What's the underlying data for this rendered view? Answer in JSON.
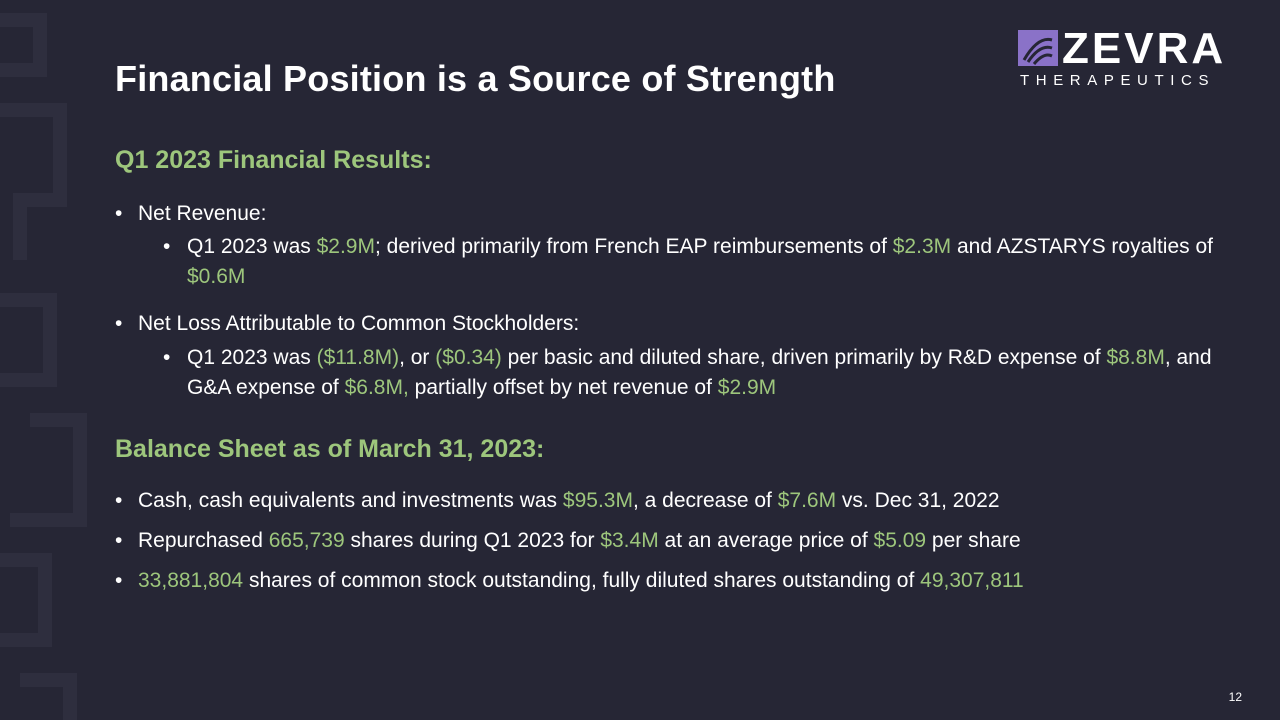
{
  "slide": {
    "title": "Financial Position is a Source of Strength",
    "page_number": "12"
  },
  "logo": {
    "word": "ZEVRA",
    "sub": "THERAPEUTICS"
  },
  "colors": {
    "background": "#262635",
    "accent_green": "#9dc67c",
    "logo_purple": "#8a72c8",
    "text": "#ffffff"
  },
  "q1_results": {
    "heading": "Q1 2023 Financial Results:",
    "net_revenue": {
      "label": "Net Revenue:",
      "detail": {
        "t1": "Q1 2023 was ",
        "v1": "$2.9M",
        "t2": "; derived primarily from French EAP reimbursements of ",
        "v2": "$2.3M",
        "t3": " and AZSTARYS royalties of ",
        "v3": "$0.6M"
      }
    },
    "net_loss": {
      "label": "Net Loss Attributable to Common Stockholders:",
      "detail": {
        "t1": "Q1 2023 was ",
        "v1": "($11.8M)",
        "t2": ", or ",
        "v2": "($0.34)",
        "t3": " per basic and diluted share, driven primarily by R&D expense of ",
        "v3": "$8.8M",
        "t4": ", and G&A expense of ",
        "v4": "$6.8M,",
        "t5": " partially offset by net revenue of ",
        "v5": "$2.9M"
      }
    }
  },
  "balance_sheet": {
    "heading": "Balance Sheet as of March 31, 2023:",
    "cash": {
      "t1": "Cash, cash equivalents and investments was ",
      "v1": "$95.3M",
      "t2": ", a decrease of ",
      "v2": "$7.6M",
      "t3": " vs. Dec 31, 2022"
    },
    "repurchase": {
      "t1": "Repurchased ",
      "v1": "665,739",
      "t2": " shares during Q1 2023 for ",
      "v2": "$3.4M",
      "t3": " at an average price of ",
      "v3": "$5.09",
      "t4": " per share"
    },
    "shares": {
      "v1": "33,881,804",
      "t1": " shares of common stock outstanding, fully diluted shares outstanding of ",
      "v2": "49,307,811"
    }
  }
}
